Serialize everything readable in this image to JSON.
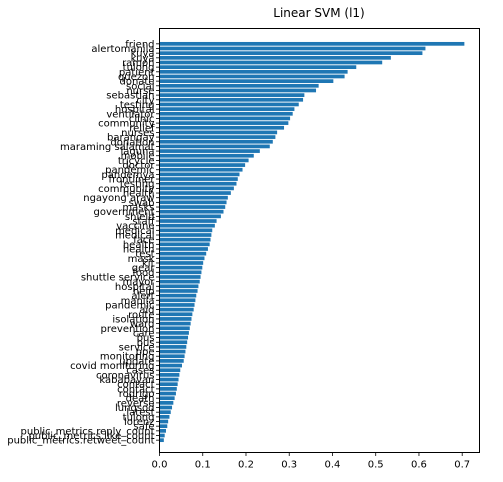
{
  "chart_data": {
    "type": "bar",
    "orientation": "horizontal",
    "title": "Linear SVM (l1)",
    "xlabel": "",
    "ylabel": "",
    "xlim": [
      0,
      0.74
    ],
    "xticks": [
      0.0,
      0.1,
      0.2,
      0.3,
      0.4,
      0.5,
      0.6,
      0.7
    ],
    "grid": false,
    "bar_color": "#1f77b4",
    "bars": [
      {
        "label": "friend",
        "value": 0.705
      },
      {
        "label": "alertomanila",
        "value": 0.615
      },
      {
        "label": "kuya",
        "value": 0.608
      },
      {
        "label": "kuya",
        "value": 0.535
      },
      {
        "label": "ramon",
        "value": 0.515
      },
      {
        "label": "tulong",
        "value": 0.455
      },
      {
        "label": "patient",
        "value": 0.435
      },
      {
        "label": "quezon",
        "value": 0.428
      },
      {
        "label": "donate",
        "value": 0.402
      },
      {
        "label": "social",
        "value": 0.368
      },
      {
        "label": "nurse",
        "value": 0.362
      },
      {
        "label": "sebastian",
        "value": 0.335
      },
      {
        "label": "city",
        "value": 0.332
      },
      {
        "label": "testing",
        "value": 0.322
      },
      {
        "label": "hospital",
        "value": 0.312
      },
      {
        "label": "ventilator",
        "value": 0.308
      },
      {
        "label": "clinic",
        "value": 0.302
      },
      {
        "label": "community",
        "value": 0.298
      },
      {
        "label": "relief",
        "value": 0.288
      },
      {
        "label": "nurses",
        "value": 0.272
      },
      {
        "label": "barangay",
        "value": 0.268
      },
      {
        "label": "donation",
        "value": 0.262
      },
      {
        "label": "maraming salamat",
        "value": 0.255
      },
      {
        "label": "laguna",
        "value": 0.232
      },
      {
        "label": "mobile",
        "value": 0.218
      },
      {
        "label": "tricycle",
        "value": 0.206
      },
      {
        "label": "doctor",
        "value": 0.198
      },
      {
        "label": "pandemic",
        "value": 0.192
      },
      {
        "label": "pandemya",
        "value": 0.185
      },
      {
        "label": "frontliner",
        "value": 0.181
      },
      {
        "label": "testing",
        "value": 0.178
      },
      {
        "label": "community",
        "value": 0.172
      },
      {
        "label": "health",
        "value": 0.165
      },
      {
        "label": "ngayong araw",
        "value": 0.158
      },
      {
        "label": "swab",
        "value": 0.155
      },
      {
        "label": "masks",
        "value": 0.152
      },
      {
        "label": "government",
        "value": 0.148
      },
      {
        "label": "shield",
        "value": 0.142
      },
      {
        "label": "staff",
        "value": 0.132
      },
      {
        "label": "vaccine",
        "value": 0.128
      },
      {
        "label": "medical",
        "value": 0.122
      },
      {
        "label": "medical",
        "value": 0.12
      },
      {
        "label": "face",
        "value": 0.118
      },
      {
        "label": "health",
        "value": 0.116
      },
      {
        "label": "health",
        "value": 0.112
      },
      {
        "label": "test",
        "value": 0.108
      },
      {
        "label": "mask",
        "value": 0.104
      },
      {
        "label": "kit",
        "value": 0.101
      },
      {
        "label": "gear",
        "value": 0.099
      },
      {
        "label": "food",
        "value": 0.097
      },
      {
        "label": "shuttle service",
        "value": 0.095
      },
      {
        "label": "mayor",
        "value": 0.093
      },
      {
        "label": "hospital",
        "value": 0.09
      },
      {
        "label": "help",
        "value": 0.088
      },
      {
        "label": "alert",
        "value": 0.085
      },
      {
        "label": "manila",
        "value": 0.083
      },
      {
        "label": "pandemic",
        "value": 0.081
      },
      {
        "label": "aid",
        "value": 0.079
      },
      {
        "label": "route",
        "value": 0.076
      },
      {
        "label": "isolation",
        "value": 0.074
      },
      {
        "label": "ward",
        "value": 0.072
      },
      {
        "label": "prevention",
        "value": 0.07
      },
      {
        "label": "care",
        "value": 0.068
      },
      {
        "label": "bus",
        "value": 0.066
      },
      {
        "label": "bus",
        "value": 0.064
      },
      {
        "label": "service",
        "value": 0.062
      },
      {
        "label": "ppe",
        "value": 0.06
      },
      {
        "label": "monitoring",
        "value": 0.058
      },
      {
        "label": "update",
        "value": 0.056
      },
      {
        "label": "covid monitoring",
        "value": 0.052
      },
      {
        "label": "cases",
        "value": 0.048
      },
      {
        "label": "coronavirus",
        "value": 0.046
      },
      {
        "label": "kababayan",
        "value": 0.044
      },
      {
        "label": "contact",
        "value": 0.042
      },
      {
        "label": "contact",
        "value": 0.04
      },
      {
        "label": "rodrigo",
        "value": 0.038
      },
      {
        "label": "death",
        "value": 0.035
      },
      {
        "label": "reverse",
        "value": 0.032
      },
      {
        "label": "lungsod",
        "value": 0.029
      },
      {
        "label": "latest",
        "value": 0.026
      },
      {
        "label": "tulong",
        "value": 0.023
      },
      {
        "label": "lorenz",
        "value": 0.02
      },
      {
        "label": "safe",
        "value": 0.018
      },
      {
        "label": "public_metrics.reply_count",
        "value": 0.015
      },
      {
        "label": "public_metrics.like_count",
        "value": 0.012
      },
      {
        "label": "public_metrics.retweet_count",
        "value": 0.01
      }
    ]
  }
}
